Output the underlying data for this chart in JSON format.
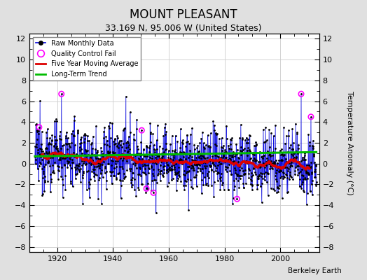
{
  "title": "MOUNT PLEASANT",
  "subtitle": "33.169 N, 95.006 W (United States)",
  "attribution": "Berkeley Earth",
  "ylabel": "Temperature Anomaly (°C)",
  "xlim": [
    1910,
    2014
  ],
  "ylim": [
    -8.5,
    12.5
  ],
  "yticks": [
    -8,
    -6,
    -4,
    -2,
    0,
    2,
    4,
    6,
    8,
    10,
    12
  ],
  "xticks": [
    1920,
    1940,
    1960,
    1980,
    2000
  ],
  "seed": 12345,
  "start_year": 1912,
  "end_year": 2012,
  "bg_color": "#e0e0e0",
  "plot_bg_color": "#ffffff",
  "line_color": "#0000dd",
  "ma_color": "#dd0000",
  "trend_color": "#00bb00",
  "qc_color": "#ff00ff",
  "legend_loc": "upper left",
  "title_fontsize": 12,
  "subtitle_fontsize": 9,
  "tick_fontsize": 8,
  "ylabel_fontsize": 8
}
